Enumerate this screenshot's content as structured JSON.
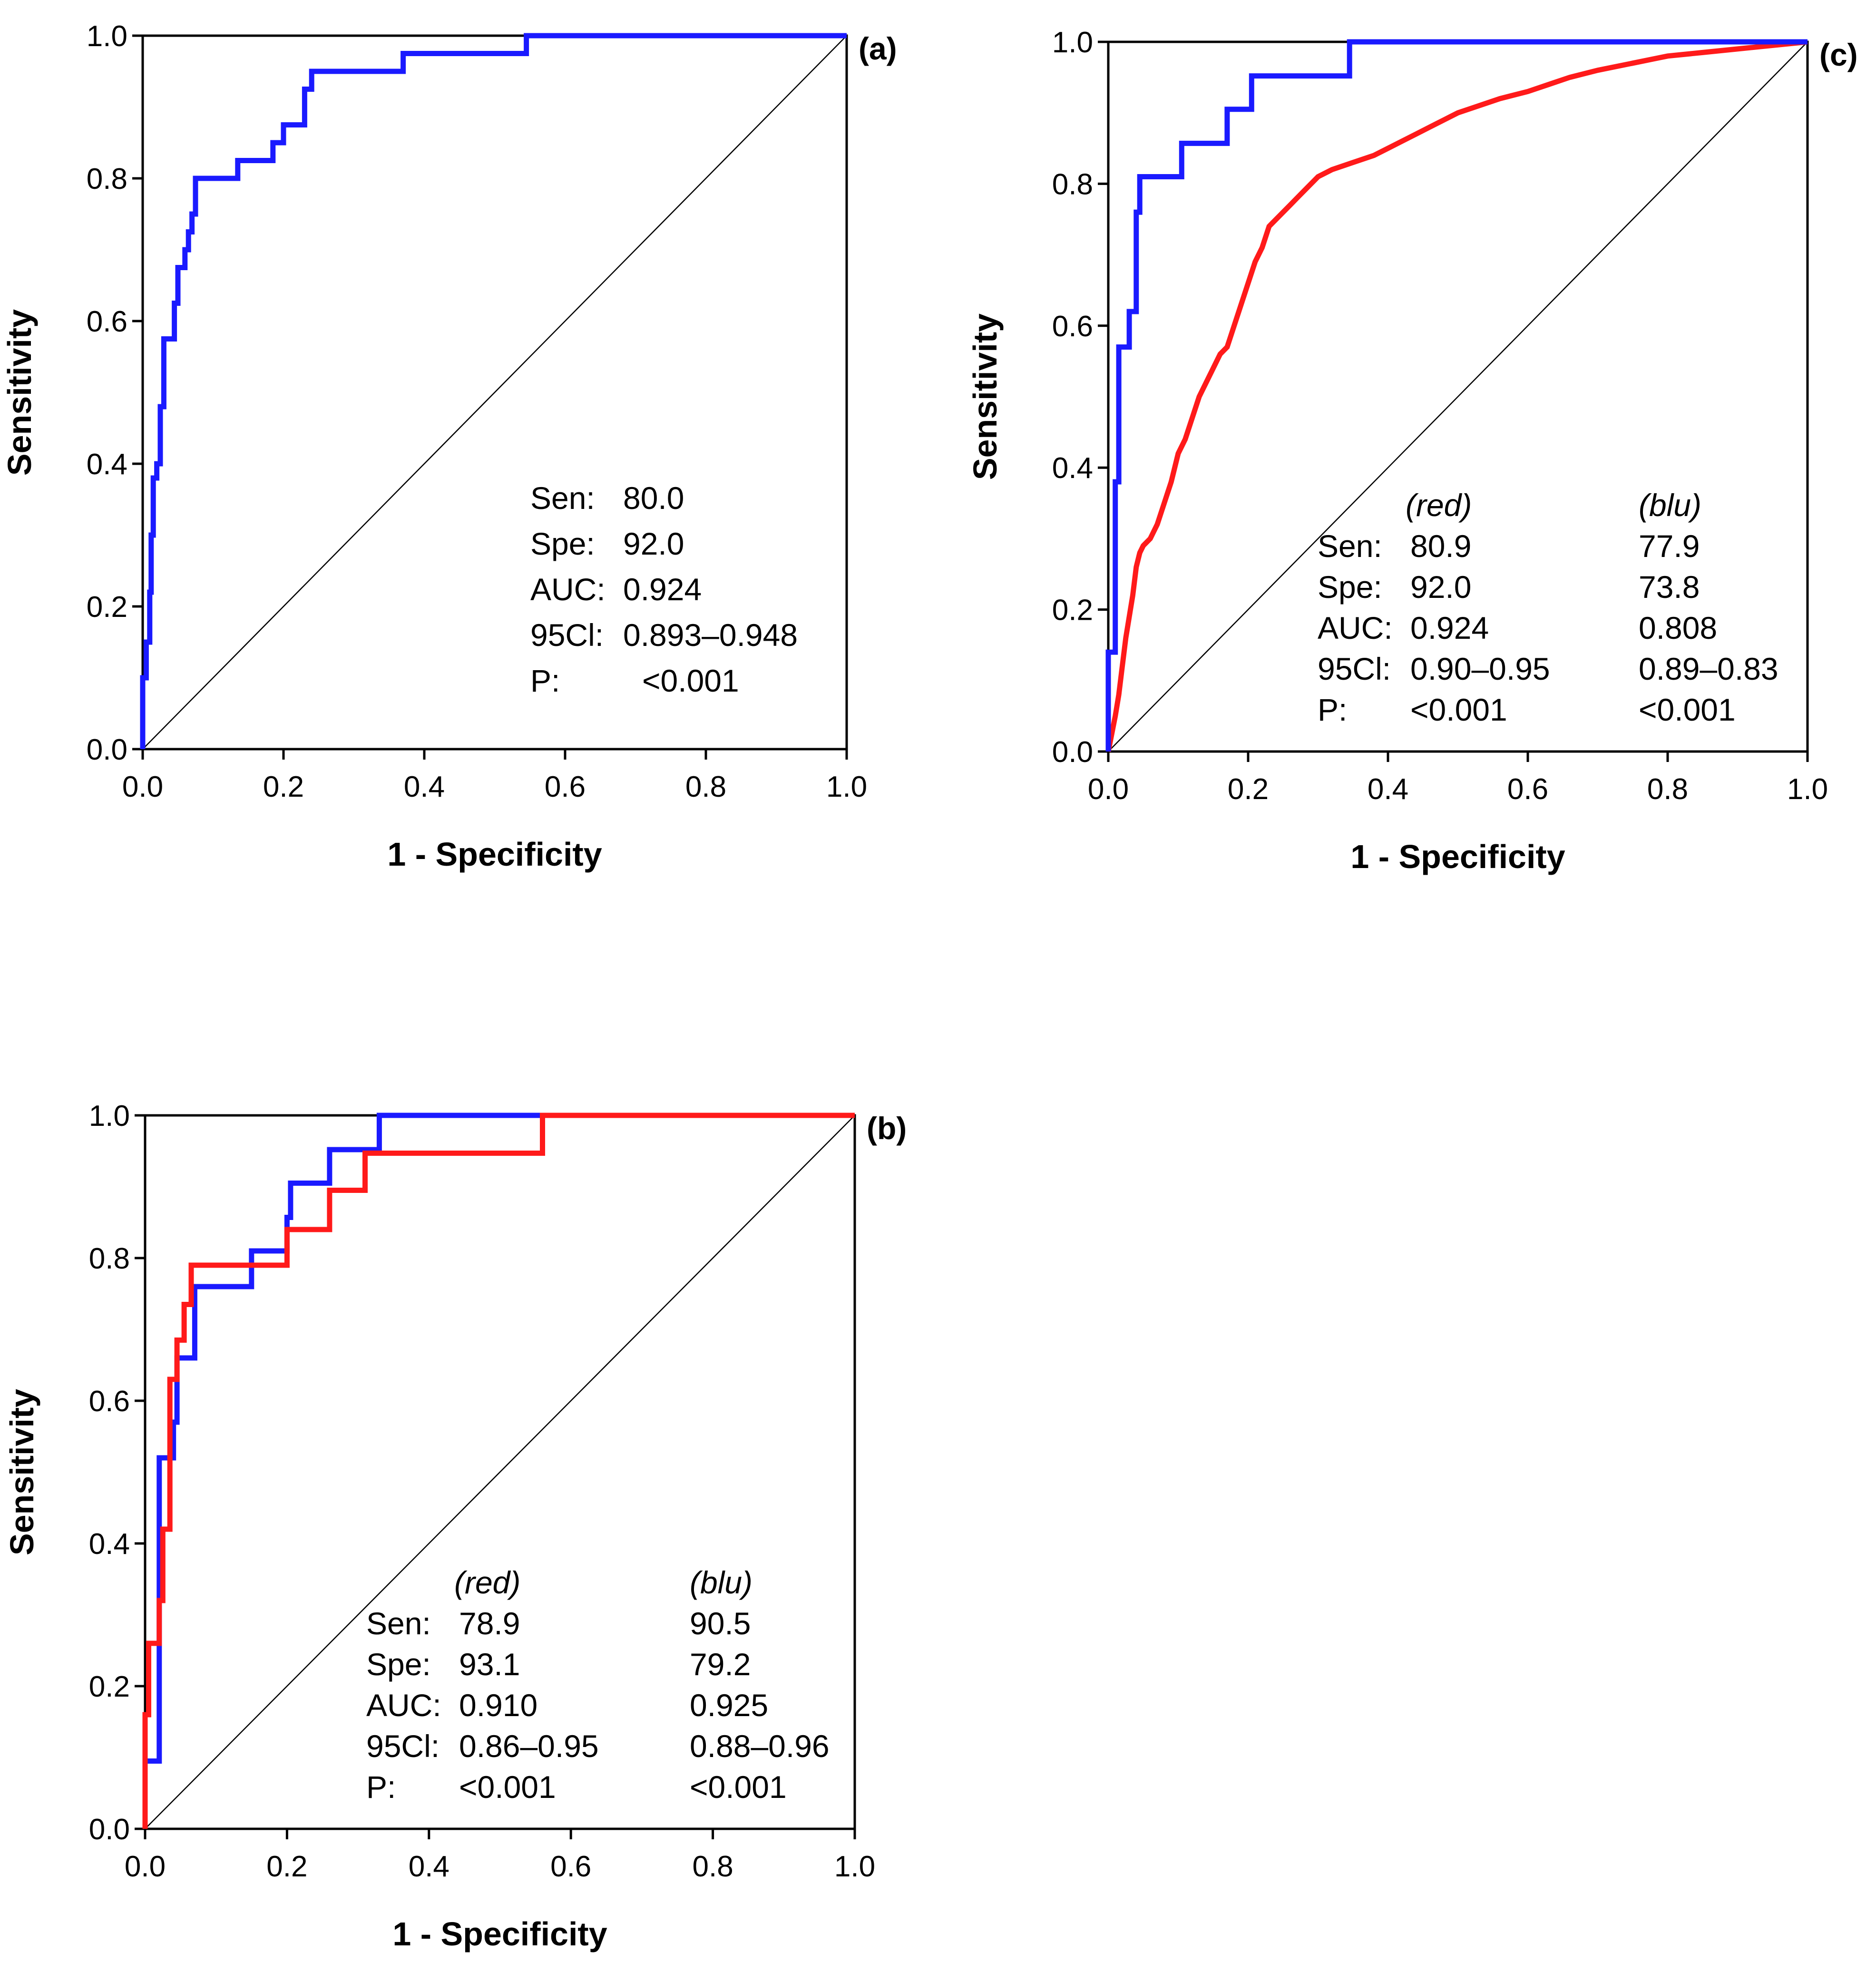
{
  "chart_data": [
    {
      "id": "a",
      "type": "line",
      "panel_label": "(a)",
      "xlabel": "1 - Specificity",
      "ylabel": "Sensitivity",
      "xlim": [
        0,
        1
      ],
      "ylim": [
        0,
        1
      ],
      "x_ticks": [
        "0.0",
        "0.2",
        "0.4",
        "0.6",
        "0.8",
        "1.0"
      ],
      "y_ticks": [
        "0.0",
        "0.2",
        "0.4",
        "0.6",
        "0.8",
        "1.0"
      ],
      "reference_line": true,
      "series": [
        {
          "name": "blue",
          "color": "#1a1aff",
          "points": [
            [
              0,
              0
            ],
            [
              0,
              0.1
            ],
            [
              0.005,
              0.1
            ],
            [
              0.005,
              0.15
            ],
            [
              0.01,
              0.15
            ],
            [
              0.01,
              0.22
            ],
            [
              0.012,
              0.22
            ],
            [
              0.012,
              0.3
            ],
            [
              0.015,
              0.3
            ],
            [
              0.015,
              0.38
            ],
            [
              0.02,
              0.38
            ],
            [
              0.02,
              0.4
            ],
            [
              0.025,
              0.4
            ],
            [
              0.025,
              0.48
            ],
            [
              0.03,
              0.48
            ],
            [
              0.03,
              0.5
            ],
            [
              0.03,
              0.575
            ],
            [
              0.045,
              0.575
            ],
            [
              0.045,
              0.625
            ],
            [
              0.05,
              0.625
            ],
            [
              0.05,
              0.675
            ],
            [
              0.06,
              0.675
            ],
            [
              0.06,
              0.7
            ],
            [
              0.065,
              0.7
            ],
            [
              0.065,
              0.725
            ],
            [
              0.07,
              0.725
            ],
            [
              0.07,
              0.75
            ],
            [
              0.075,
              0.75
            ],
            [
              0.075,
              0.8
            ],
            [
              0.135,
              0.8
            ],
            [
              0.135,
              0.825
            ],
            [
              0.16,
              0.825
            ],
            [
              0.185,
              0.825
            ],
            [
              0.185,
              0.85
            ],
            [
              0.2,
              0.85
            ],
            [
              0.2,
              0.875
            ],
            [
              0.23,
              0.875
            ],
            [
              0.23,
              0.925
            ],
            [
              0.24,
              0.925
            ],
            [
              0.24,
              0.95
            ],
            [
              0.37,
              0.95
            ],
            [
              0.37,
              0.975
            ],
            [
              0.545,
              0.975
            ],
            [
              0.545,
              1.0
            ],
            [
              1.0,
              1.0
            ]
          ]
        }
      ],
      "stats": {
        "columns": [],
        "rows": [
          {
            "label": "Sen:",
            "values": [
              "80.0"
            ]
          },
          {
            "label": "Spe:",
            "values": [
              "92.0"
            ]
          },
          {
            "label": "AUC:",
            "values": [
              "0.924"
            ]
          },
          {
            "label": "95Cl:",
            "values": [
              "0.893–0.948"
            ]
          },
          {
            "label": "P:",
            "values": [
              "<0.001"
            ]
          }
        ]
      }
    },
    {
      "id": "c",
      "type": "line",
      "panel_label": "(c)",
      "xlabel": "1 - Specificity",
      "ylabel": "Sensitivity",
      "xlim": [
        0,
        1
      ],
      "ylim": [
        0,
        1
      ],
      "x_ticks": [
        "0.0",
        "0.2",
        "0.4",
        "0.6",
        "0.8",
        "1.0"
      ],
      "y_ticks": [
        "0.0",
        "0.2",
        "0.4",
        "0.6",
        "0.8",
        "1.0"
      ],
      "reference_line": true,
      "series": [
        {
          "name": "blue",
          "color": "#1a1aff",
          "points": [
            [
              0,
              0
            ],
            [
              0,
              0.14
            ],
            [
              0.01,
              0.14
            ],
            [
              0.01,
              0.38
            ],
            [
              0.015,
              0.38
            ],
            [
              0.015,
              0.57
            ],
            [
              0.03,
              0.57
            ],
            [
              0.03,
              0.62
            ],
            [
              0.04,
              0.62
            ],
            [
              0.04,
              0.76
            ],
            [
              0.045,
              0.76
            ],
            [
              0.045,
              0.81
            ],
            [
              0.105,
              0.81
            ],
            [
              0.105,
              0.857
            ],
            [
              0.17,
              0.857
            ],
            [
              0.17,
              0.905
            ],
            [
              0.205,
              0.905
            ],
            [
              0.205,
              0.952
            ],
            [
              0.345,
              0.952
            ],
            [
              0.345,
              1.0
            ],
            [
              1.0,
              1.0
            ]
          ]
        },
        {
          "name": "red",
          "color": "#ff1a1a",
          "points": [
            [
              0,
              0
            ],
            [
              0.01,
              0.05
            ],
            [
              0.015,
              0.08
            ],
            [
              0.02,
              0.12
            ],
            [
              0.025,
              0.16
            ],
            [
              0.03,
              0.19
            ],
            [
              0.035,
              0.22
            ],
            [
              0.04,
              0.26
            ],
            [
              0.045,
              0.28
            ],
            [
              0.05,
              0.29
            ],
            [
              0.06,
              0.3
            ],
            [
              0.07,
              0.32
            ],
            [
              0.08,
              0.35
            ],
            [
              0.09,
              0.38
            ],
            [
              0.1,
              0.42
            ],
            [
              0.11,
              0.44
            ],
            [
              0.12,
              0.47
            ],
            [
              0.13,
              0.5
            ],
            [
              0.14,
              0.52
            ],
            [
              0.15,
              0.54
            ],
            [
              0.16,
              0.56
            ],
            [
              0.17,
              0.57
            ],
            [
              0.18,
              0.6
            ],
            [
              0.19,
              0.63
            ],
            [
              0.2,
              0.66
            ],
            [
              0.21,
              0.69
            ],
            [
              0.22,
              0.71
            ],
            [
              0.23,
              0.74
            ],
            [
              0.24,
              0.75
            ],
            [
              0.25,
              0.76
            ],
            [
              0.26,
              0.77
            ],
            [
              0.27,
              0.78
            ],
            [
              0.28,
              0.79
            ],
            [
              0.29,
              0.8
            ],
            [
              0.3,
              0.81
            ],
            [
              0.32,
              0.82
            ],
            [
              0.35,
              0.83
            ],
            [
              0.38,
              0.84
            ],
            [
              0.4,
              0.85
            ],
            [
              0.42,
              0.86
            ],
            [
              0.44,
              0.87
            ],
            [
              0.46,
              0.88
            ],
            [
              0.48,
              0.89
            ],
            [
              0.5,
              0.9
            ],
            [
              0.53,
              0.91
            ],
            [
              0.56,
              0.92
            ],
            [
              0.6,
              0.93
            ],
            [
              0.63,
              0.94
            ],
            [
              0.66,
              0.95
            ],
            [
              0.7,
              0.96
            ],
            [
              0.75,
              0.97
            ],
            [
              0.8,
              0.98
            ],
            [
              0.85,
              0.985
            ],
            [
              0.9,
              0.99
            ],
            [
              1.0,
              1.0
            ]
          ]
        }
      ],
      "stats": {
        "columns": [
          "(red)",
          "(blu)"
        ],
        "rows": [
          {
            "label": "Sen:",
            "values": [
              "80.9",
              "77.9"
            ]
          },
          {
            "label": "Spe:",
            "values": [
              "92.0",
              "73.8"
            ]
          },
          {
            "label": "AUC:",
            "values": [
              "0.924",
              "0.808"
            ]
          },
          {
            "label": "95Cl:",
            "values": [
              "0.90–0.95",
              "0.89–0.83"
            ]
          },
          {
            "label": "P:",
            "values": [
              "<0.001",
              "<0.001"
            ]
          }
        ]
      }
    },
    {
      "id": "b",
      "type": "line",
      "panel_label": "(b)",
      "xlabel": "1 - Specificity",
      "ylabel": "Sensitivity",
      "xlim": [
        0,
        1
      ],
      "ylim": [
        0,
        1
      ],
      "x_ticks": [
        "0.0",
        "0.2",
        "0.4",
        "0.6",
        "0.8",
        "1.0"
      ],
      "y_ticks": [
        "0.0",
        "0.2",
        "0.4",
        "0.6",
        "0.8",
        "1.0"
      ],
      "reference_line": true,
      "series": [
        {
          "name": "blue",
          "color": "#1a1aff",
          "points": [
            [
              0,
              0
            ],
            [
              0,
              0.095
            ],
            [
              0.02,
              0.095
            ],
            [
              0.02,
              0.52
            ],
            [
              0.04,
              0.52
            ],
            [
              0.04,
              0.57
            ],
            [
              0.045,
              0.57
            ],
            [
              0.045,
              0.66
            ],
            [
              0.07,
              0.66
            ],
            [
              0.07,
              0.76
            ],
            [
              0.15,
              0.76
            ],
            [
              0.15,
              0.81
            ],
            [
              0.2,
              0.81
            ],
            [
              0.2,
              0.857
            ],
            [
              0.205,
              0.857
            ],
            [
              0.205,
              0.905
            ],
            [
              0.26,
              0.905
            ],
            [
              0.26,
              0.952
            ],
            [
              0.33,
              0.952
            ],
            [
              0.33,
              1.0
            ],
            [
              1.0,
              1.0
            ]
          ]
        },
        {
          "name": "red",
          "color": "#ff1a1a",
          "points": [
            [
              0,
              0
            ],
            [
              0,
              0.16
            ],
            [
              0.005,
              0.16
            ],
            [
              0.005,
              0.26
            ],
            [
              0.02,
              0.26
            ],
            [
              0.02,
              0.32
            ],
            [
              0.025,
              0.32
            ],
            [
              0.025,
              0.42
            ],
            [
              0.035,
              0.42
            ],
            [
              0.035,
              0.63
            ],
            [
              0.045,
              0.63
            ],
            [
              0.045,
              0.685
            ],
            [
              0.055,
              0.685
            ],
            [
              0.055,
              0.735
            ],
            [
              0.065,
              0.735
            ],
            [
              0.065,
              0.79
            ],
            [
              0.2,
              0.79
            ],
            [
              0.2,
              0.84
            ],
            [
              0.26,
              0.84
            ],
            [
              0.26,
              0.895
            ],
            [
              0.31,
              0.895
            ],
            [
              0.31,
              0.947
            ],
            [
              0.56,
              0.947
            ],
            [
              0.56,
              1.0
            ],
            [
              1.0,
              1.0
            ]
          ]
        }
      ],
      "stats": {
        "columns": [
          "(red)",
          "(blu)"
        ],
        "rows": [
          {
            "label": "Sen:",
            "values": [
              "78.9",
              "90.5"
            ]
          },
          {
            "label": "Spe:",
            "values": [
              "93.1",
              "79.2"
            ]
          },
          {
            "label": "AUC:",
            "values": [
              "0.910",
              "0.925"
            ]
          },
          {
            "label": "95Cl:",
            "values": [
              "0.86–0.95",
              "0.88–0.96"
            ]
          },
          {
            "label": "P:",
            "values": [
              "<0.001",
              "<0.001"
            ]
          }
        ]
      }
    }
  ]
}
